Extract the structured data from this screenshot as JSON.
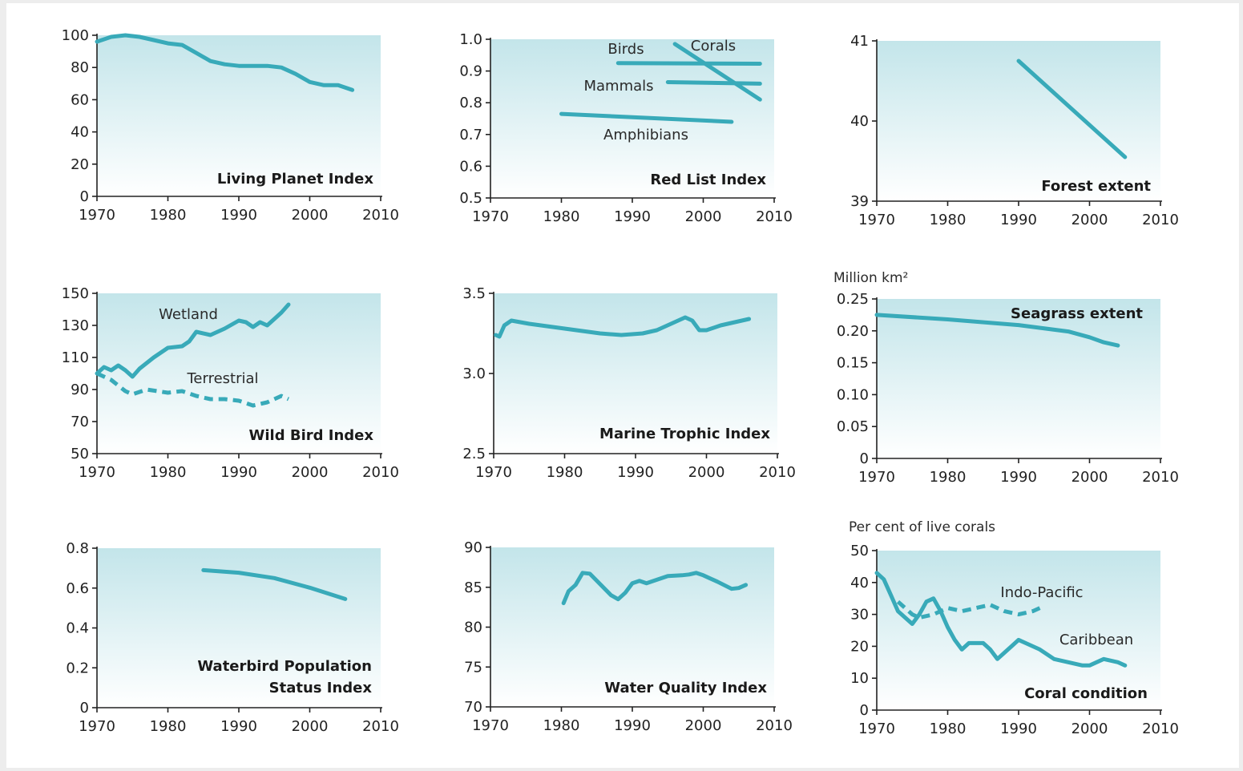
{
  "colors": {
    "line": "#38aab9",
    "panel_top": "#c3e5ea",
    "panel_bottom": "#ffffff",
    "background": "#ededed"
  },
  "chart_data": [
    {
      "id": "lpi",
      "type": "line",
      "title": "Living Planet Index",
      "unit": "",
      "xlim": [
        1970,
        2010
      ],
      "ylim": [
        0,
        100
      ],
      "xticks": [
        "1970",
        "1980",
        "1990",
        "2000",
        "2010"
      ],
      "yticks": [
        "0",
        "20",
        "40",
        "60",
        "80",
        "100"
      ],
      "series": [
        {
          "name": "",
          "dashed": false,
          "points": [
            [
              1970,
              96
            ],
            [
              1972,
              99
            ],
            [
              1974,
              100
            ],
            [
              1976,
              99
            ],
            [
              1978,
              97
            ],
            [
              1980,
              95
            ],
            [
              1982,
              94
            ],
            [
              1984,
              89
            ],
            [
              1986,
              84
            ],
            [
              1988,
              82
            ],
            [
              1990,
              81
            ],
            [
              1992,
              81
            ],
            [
              1994,
              81
            ],
            [
              1996,
              80
            ],
            [
              1998,
              76
            ],
            [
              2000,
              71
            ],
            [
              2002,
              69
            ],
            [
              2004,
              69
            ],
            [
              2006,
              66
            ]
          ]
        }
      ]
    },
    {
      "id": "rli",
      "type": "line",
      "title": "Red List Index",
      "unit": "",
      "xlim": [
        1970,
        2010
      ],
      "ylim": [
        0.5,
        1.0
      ],
      "xticks": [
        "1970",
        "1980",
        "1990",
        "2000",
        "2010"
      ],
      "yticks": [
        "0.5",
        "0.6",
        "0.7",
        "0.8",
        "0.9",
        "1.0"
      ],
      "series": [
        {
          "name": "Birds",
          "dashed": false,
          "points": [
            [
              1988,
              0.925
            ],
            [
              2008,
              0.923
            ]
          ]
        },
        {
          "name": "Corals",
          "dashed": false,
          "points": [
            [
              1996,
              0.985
            ],
            [
              2008,
              0.81
            ]
          ]
        },
        {
          "name": "Mammals",
          "dashed": false,
          "points": [
            [
              1995,
              0.865
            ],
            [
              2008,
              0.86
            ]
          ]
        },
        {
          "name": "Amphibians",
          "dashed": false,
          "points": [
            [
              1980,
              0.765
            ],
            [
              2004,
              0.74
            ]
          ]
        }
      ]
    },
    {
      "id": "forest",
      "type": "line",
      "title": "Forest extent",
      "unit": "",
      "xlim": [
        1970,
        2010
      ],
      "ylim": [
        39,
        41
      ],
      "xticks": [
        "1970",
        "1980",
        "1990",
        "2000",
        "2010"
      ],
      "yticks": [
        "39",
        "40",
        "41"
      ],
      "series": [
        {
          "name": "",
          "dashed": false,
          "points": [
            [
              1990,
              40.75
            ],
            [
              2005,
              39.55
            ]
          ]
        }
      ]
    },
    {
      "id": "wbi",
      "type": "line",
      "title": "Wild Bird Index",
      "unit": "",
      "xlim": [
        1970,
        2010
      ],
      "ylim": [
        50,
        150
      ],
      "xticks": [
        "1970",
        "1980",
        "1990",
        "2000",
        "2010"
      ],
      "yticks": [
        "50",
        "70",
        "90",
        "110",
        "130",
        "150"
      ],
      "series": [
        {
          "name": "Wetland",
          "dashed": false,
          "points": [
            [
              1970,
              100
            ],
            [
              1971,
              104
            ],
            [
              1972,
              102
            ],
            [
              1973,
              105
            ],
            [
              1974,
              102
            ],
            [
              1975,
              98
            ],
            [
              1976,
              103
            ],
            [
              1978,
              110
            ],
            [
              1980,
              116
            ],
            [
              1982,
              117
            ],
            [
              1983,
              120
            ],
            [
              1984,
              126
            ],
            [
              1986,
              124
            ],
            [
              1988,
              128
            ],
            [
              1990,
              133
            ],
            [
              1991,
              132
            ],
            [
              1992,
              129
            ],
            [
              1993,
              132
            ],
            [
              1994,
              130
            ],
            [
              1995,
              134
            ],
            [
              1996,
              138
            ],
            [
              1997,
              143
            ]
          ]
        },
        {
          "name": "Terrestrial",
          "dashed": true,
          "points": [
            [
              1970,
              100
            ],
            [
              1972,
              96
            ],
            [
              1974,
              89
            ],
            [
              1975,
              87
            ],
            [
              1977,
              90
            ],
            [
              1980,
              88
            ],
            [
              1982,
              89
            ],
            [
              1984,
              86
            ],
            [
              1986,
              84
            ],
            [
              1988,
              84
            ],
            [
              1990,
              83
            ],
            [
              1992,
              80
            ],
            [
              1994,
              82
            ],
            [
              1996,
              86
            ],
            [
              1997,
              84
            ]
          ]
        }
      ]
    },
    {
      "id": "mti",
      "type": "line",
      "title": "Marine Trophic Index",
      "unit": "",
      "xlim": [
        1970,
        2010
      ],
      "ylim": [
        2.5,
        3.5
      ],
      "xticks": [
        "1970",
        "1980",
        "1990",
        "2000",
        "2010"
      ],
      "yticks": [
        "2.5",
        "3.0",
        "3.5"
      ],
      "series": [
        {
          "name": "",
          "dashed": false,
          "points": [
            [
              1970.3,
              3.24
            ],
            [
              1970.8,
              3.23
            ],
            [
              1971.5,
              3.3
            ],
            [
              1972.5,
              3.33
            ],
            [
              1975,
              3.31
            ],
            [
              1980,
              3.28
            ],
            [
              1985,
              3.25
            ],
            [
              1988,
              3.24
            ],
            [
              1991,
              3.25
            ],
            [
              1993,
              3.27
            ],
            [
              1995,
              3.31
            ],
            [
              1997,
              3.35
            ],
            [
              1998,
              3.33
            ],
            [
              1999,
              3.27
            ],
            [
              2000,
              3.27
            ],
            [
              2002,
              3.3
            ],
            [
              2004,
              3.32
            ],
            [
              2006,
              3.34
            ]
          ]
        }
      ]
    },
    {
      "id": "seagrass",
      "type": "line",
      "title": "Seagrass extent",
      "unit": "Million km²",
      "xlim": [
        1970,
        2010
      ],
      "ylim": [
        0,
        0.25
      ],
      "xticks": [
        "1970",
        "1980",
        "1990",
        "2000",
        "2010"
      ],
      "yticks": [
        "0",
        "0.05",
        "0.10",
        "0.15",
        "0.20",
        "0.25"
      ],
      "series": [
        {
          "name": "",
          "dashed": false,
          "points": [
            [
              1970,
              0.225
            ],
            [
              1980,
              0.218
            ],
            [
              1990,
              0.209
            ],
            [
              1997,
              0.199
            ],
            [
              2000,
              0.19
            ],
            [
              2002,
              0.182
            ],
            [
              2004,
              0.177
            ]
          ]
        }
      ]
    },
    {
      "id": "waterbird",
      "type": "line",
      "title": "Waterbird Population Status Index",
      "unit": "",
      "title_lines": [
        "Waterbird Population",
        "Status Index"
      ],
      "xlim": [
        1970,
        2010
      ],
      "ylim": [
        0,
        0.8
      ],
      "xticks": [
        "1970",
        "1980",
        "1990",
        "2000",
        "2010"
      ],
      "yticks": [
        "0",
        "0.2",
        "0.4",
        "0.6",
        "0.8"
      ],
      "series": [
        {
          "name": "",
          "dashed": false,
          "points": [
            [
              1985,
              0.69
            ],
            [
              1990,
              0.677
            ],
            [
              1995,
              0.65
            ],
            [
              2000,
              0.602
            ],
            [
              2005,
              0.545
            ]
          ]
        }
      ]
    },
    {
      "id": "wqi",
      "type": "line",
      "title": "Water Quality Index",
      "unit": "",
      "xlim": [
        1970,
        2010
      ],
      "ylim": [
        70,
        90
      ],
      "xticks": [
        "1970",
        "1980",
        "1990",
        "2000",
        "2010"
      ],
      "yticks": [
        "70",
        "75",
        "80",
        "85",
        "90"
      ],
      "series": [
        {
          "name": "",
          "dashed": false,
          "points": [
            [
              1980.3,
              83
            ],
            [
              1981,
              84.5
            ],
            [
              1982,
              85.3
            ],
            [
              1983,
              86.8
            ],
            [
              1984,
              86.7
            ],
            [
              1985,
              85.8
            ],
            [
              1987,
              84
            ],
            [
              1988,
              83.5
            ],
            [
              1989,
              84.3
            ],
            [
              1990,
              85.5
            ],
            [
              1991,
              85.8
            ],
            [
              1992,
              85.5
            ],
            [
              1993,
              85.8
            ],
            [
              1995,
              86.4
            ],
            [
              1997,
              86.5
            ],
            [
              1998,
              86.6
            ],
            [
              1999,
              86.8
            ],
            [
              2000,
              86.5
            ],
            [
              2002,
              85.7
            ],
            [
              2004,
              84.8
            ],
            [
              2005,
              84.9
            ],
            [
              2006,
              85.3
            ]
          ]
        }
      ]
    },
    {
      "id": "coral",
      "type": "line",
      "title": "Coral condition",
      "unit": "Per cent of live corals",
      "xlim": [
        1970,
        2010
      ],
      "ylim": [
        0,
        50
      ],
      "xticks": [
        "1970",
        "1980",
        "1990",
        "2000",
        "2010"
      ],
      "yticks": [
        "0",
        "10",
        "20",
        "30",
        "40",
        "50"
      ],
      "series": [
        {
          "name": "Caribbean",
          "dashed": false,
          "points": [
            [
              1970,
              43
            ],
            [
              1971,
              41
            ],
            [
              1972,
              36
            ],
            [
              1973,
              31
            ],
            [
              1975,
              27
            ],
            [
              1976,
              30
            ],
            [
              1977,
              34
            ],
            [
              1978,
              35
            ],
            [
              1979,
              31
            ],
            [
              1980,
              26
            ],
            [
              1981,
              22
            ],
            [
              1982,
              19
            ],
            [
              1983,
              21
            ],
            [
              1985,
              21
            ],
            [
              1986,
              19
            ],
            [
              1987,
              16
            ],
            [
              1988,
              18
            ],
            [
              1989,
              20
            ],
            [
              1990,
              22
            ],
            [
              1991,
              21
            ],
            [
              1993,
              19
            ],
            [
              1995,
              16
            ],
            [
              1997,
              15
            ],
            [
              1999,
              14
            ],
            [
              2000,
              14
            ],
            [
              2001,
              15
            ],
            [
              2002,
              16
            ],
            [
              2004,
              15
            ],
            [
              2005,
              14
            ]
          ]
        },
        {
          "name": "Indo-Pacific",
          "dashed": true,
          "points": [
            [
              1973,
              34
            ],
            [
              1974,
              32
            ],
            [
              1975,
              30
            ],
            [
              1976,
              29
            ],
            [
              1978,
              30
            ],
            [
              1980,
              32
            ],
            [
              1982,
              31
            ],
            [
              1984,
              32
            ],
            [
              1986,
              33
            ],
            [
              1988,
              31
            ],
            [
              1990,
              30
            ],
            [
              1992,
              31
            ],
            [
              1993,
              32
            ]
          ]
        }
      ]
    }
  ]
}
